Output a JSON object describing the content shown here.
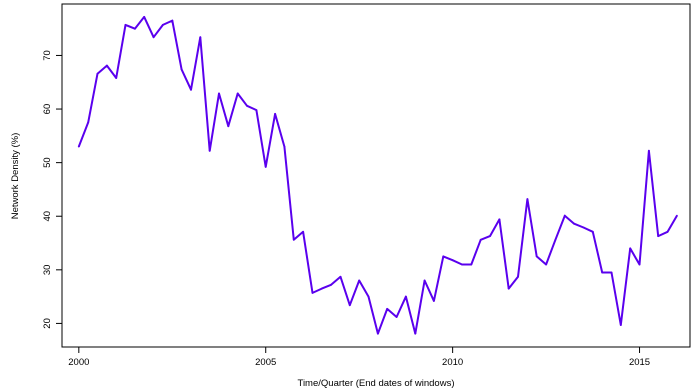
{
  "chart_data": {
    "type": "line",
    "xlabel": "Time/Quarter (End dates of windows)",
    "ylabel": "Network Density (%)",
    "xlim": [
      1999.55,
      2016.35
    ],
    "ylim": [
      15.6,
      79.6
    ],
    "x_ticks": [
      2000,
      2005,
      2010,
      2015
    ],
    "y_ticks": [
      20,
      30,
      40,
      50,
      60,
      70
    ],
    "grid": false,
    "legend": "none",
    "line_color": "#5a00ee",
    "series": [
      {
        "x": [
          2000.0,
          2000.25,
          2000.5,
          2000.75,
          2001.0,
          2001.25,
          2001.5,
          2001.75,
          2002.0,
          2002.25,
          2002.5,
          2002.75,
          2003.0,
          2003.25,
          2003.5,
          2003.75,
          2004.0,
          2004.25,
          2004.5,
          2004.75,
          2005.0,
          2005.25,
          2005.5,
          2005.75,
          2006.0,
          2006.25,
          2006.5,
          2006.75,
          2007.0,
          2007.25,
          2007.5,
          2007.75,
          2008.0,
          2008.25,
          2008.5,
          2008.75,
          2009.0,
          2009.25,
          2009.5,
          2009.75,
          2010.0,
          2010.25,
          2010.5,
          2010.75,
          2011.0,
          2011.25,
          2011.5,
          2011.75,
          2012.0,
          2012.25,
          2012.5,
          2012.75,
          2013.0,
          2013.25,
          2013.5,
          2013.75,
          2014.0,
          2014.25,
          2014.5,
          2014.75,
          2015.0,
          2015.25,
          2015.5,
          2015.75,
          2016.0
        ],
        "values": [
          53.0,
          57.5,
          66.6,
          68.1,
          65.8,
          75.7,
          75.0,
          77.2,
          73.4,
          75.7,
          76.5,
          67.4,
          63.6,
          73.4,
          52.2,
          62.9,
          56.8,
          62.9,
          60.6,
          59.8,
          49.2,
          59.1,
          53.0,
          35.6,
          37.1,
          25.7,
          26.5,
          27.2,
          28.7,
          23.4,
          28.0,
          25.0,
          18.1,
          22.7,
          21.2,
          25.0,
          18.1,
          28.0,
          24.2,
          32.5,
          31.8,
          31.0,
          31.0,
          35.6,
          36.3,
          39.4,
          26.5,
          28.7,
          43.2,
          32.5,
          31.0,
          35.6,
          40.1,
          38.6,
          37.9,
          37.1,
          29.5,
          29.5,
          19.7,
          34.0,
          31.0,
          52.2,
          36.3,
          37.1,
          40.1
        ]
      }
    ]
  }
}
